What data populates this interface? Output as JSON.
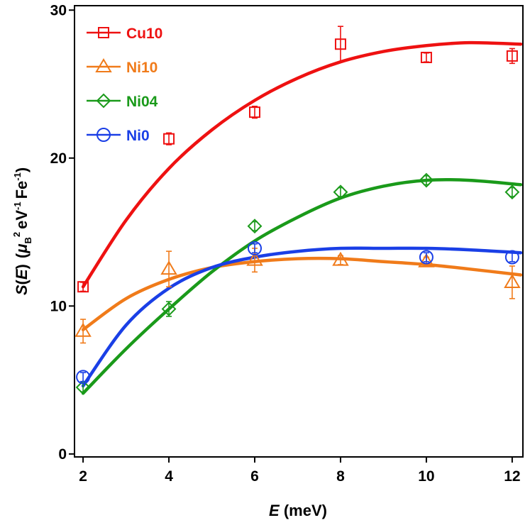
{
  "chart_data": {
    "type": "scatter",
    "xlabel": {
      "italic": "E",
      "normal": " (meV)"
    },
    "ylabel": {
      "s": "S",
      "paren_open": "(",
      "e": "E",
      "paren_close": ")",
      "mu": "μ",
      "b": "B",
      "two": "2",
      "ev": "eV",
      "m1": "-1",
      "fe": "Fe",
      "m1b": "-1",
      "close": ")"
    },
    "xlim": [
      1.8,
      12.25
    ],
    "ylim": [
      -0.2,
      30.3
    ],
    "xticks": [
      2,
      4,
      6,
      8,
      10,
      12
    ],
    "xtick_labels": [
      "2",
      "4",
      "6",
      "8",
      "10",
      "12"
    ],
    "yticks": [
      0,
      10,
      20,
      30
    ],
    "ytick_labels": [
      "0",
      "10",
      "20",
      "30"
    ],
    "legend_position": "top-left",
    "series": [
      {
        "name": "Cu10",
        "color": "#ee1111",
        "marker": "square",
        "x": [
          2,
          4,
          6,
          8,
          10,
          12
        ],
        "y": [
          11.3,
          21.3,
          23.1,
          27.7,
          26.8,
          26.9
        ],
        "err": [
          0.3,
          0.4,
          0.4,
          1.2,
          0.3,
          0.5
        ],
        "fit_x": [
          2,
          3,
          4,
          5,
          6,
          7,
          8,
          9,
          10,
          11,
          12.2
        ],
        "fit_y": [
          11.3,
          15.8,
          19.3,
          21.9,
          23.9,
          25.4,
          26.5,
          27.2,
          27.6,
          27.8,
          27.7
        ]
      },
      {
        "name": "Ni10",
        "color": "#f07b1a",
        "marker": "triangle",
        "x": [
          2,
          4,
          6,
          8,
          10,
          12
        ],
        "y": [
          8.3,
          12.5,
          13.1,
          13.1,
          13.0,
          11.6
        ],
        "err": [
          0.8,
          1.2,
          0.8,
          0.3,
          0.3,
          1.1
        ],
        "fit_x": [
          2,
          3,
          4,
          5,
          6,
          7,
          8,
          9,
          10,
          11,
          12.2
        ],
        "fit_y": [
          8.4,
          10.5,
          11.8,
          12.6,
          13.0,
          13.2,
          13.2,
          13.0,
          12.8,
          12.5,
          12.1
        ]
      },
      {
        "name": "Ni04",
        "color": "#1a9a1a",
        "marker": "diamond",
        "x": [
          2,
          4,
          6,
          8,
          10,
          12
        ],
        "y": [
          4.5,
          9.8,
          15.4,
          17.7,
          18.5,
          17.7
        ],
        "err": [
          0.3,
          0.5,
          0.3,
          0.3,
          0.3,
          0.3
        ],
        "fit_x": [
          2,
          3,
          4,
          5,
          6,
          7,
          8,
          9,
          10,
          11,
          12.2
        ],
        "fit_y": [
          4.1,
          7.1,
          9.8,
          12.3,
          14.4,
          16.0,
          17.3,
          18.1,
          18.5,
          18.5,
          18.2
        ]
      },
      {
        "name": "Ni0",
        "color": "#1a3fe6",
        "marker": "circle",
        "x": [
          2,
          6,
          10,
          12
        ],
        "y": [
          5.2,
          13.9,
          13.3,
          13.3
        ],
        "err": [
          0.3,
          0.3,
          0.3,
          0.3
        ],
        "fit_x": [
          2,
          3,
          4,
          5,
          6,
          7,
          8,
          9,
          10,
          11,
          12.2
        ],
        "fit_y": [
          4.6,
          8.7,
          11.2,
          12.6,
          13.3,
          13.7,
          13.9,
          13.9,
          13.9,
          13.8,
          13.6
        ]
      }
    ]
  }
}
